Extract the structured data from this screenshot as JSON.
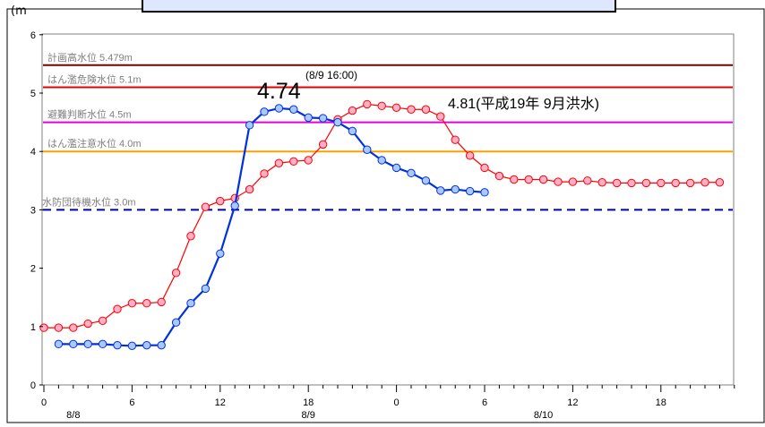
{
  "chart_data": {
    "type": "line",
    "title": "",
    "ylabel": "(m",
    "ylim": [
      0,
      6
    ],
    "y_ticks": [
      "0",
      "1",
      "2",
      "3",
      "4",
      "5",
      "6"
    ],
    "x_ticks": [
      {
        "h": 0,
        "label": "0"
      },
      {
        "h": 6,
        "label": "6"
      },
      {
        "h": 12,
        "label": "12"
      },
      {
        "h": 18,
        "label": "18"
      },
      {
        "h": 24,
        "label": "0"
      },
      {
        "h": 30,
        "label": "6"
      },
      {
        "h": 36,
        "label": "12"
      },
      {
        "h": 42,
        "label": "18"
      }
    ],
    "date_labels": [
      {
        "h": 2,
        "label": "8/8"
      },
      {
        "h": 18,
        "label": "8/9"
      },
      {
        "h": 34,
        "label": "8/10"
      }
    ],
    "reference_lines": [
      {
        "label": "計画高水位 5.479m",
        "value": 5.479,
        "color": "#7a0000",
        "dashed": false
      },
      {
        "label": "はん濫危険水位 5.1m",
        "value": 5.1,
        "color": "#e00000",
        "dashed": false
      },
      {
        "label": "避難判断水位 4.5m",
        "value": 4.5,
        "color": "#e000e0",
        "dashed": false
      },
      {
        "label": "はん濫注意水位 4.0m",
        "value": 4.0,
        "color": "#ffa000",
        "dashed": false
      },
      {
        "label": "水防団待機水位 3.0m",
        "value": 3.0,
        "color": "#0000b0",
        "dashed": true
      }
    ],
    "series": [
      {
        "name": "",
        "color": "#ff0000",
        "fill": "#ffb0c8",
        "x": [
          0,
          1,
          2,
          3,
          4,
          5,
          6,
          7,
          8,
          9,
          10,
          11,
          12,
          13,
          14,
          15,
          16,
          17,
          18,
          19,
          20,
          21,
          22,
          23,
          24,
          25,
          26,
          27,
          28,
          29,
          30,
          31,
          32,
          33,
          34,
          35,
          36,
          37,
          38,
          39,
          40,
          41,
          42,
          43,
          44,
          45,
          46
        ],
        "values": [
          0.98,
          0.98,
          0.98,
          1.05,
          1.1,
          1.3,
          1.4,
          1.4,
          1.42,
          1.92,
          2.55,
          3.05,
          3.15,
          3.2,
          3.35,
          3.62,
          3.8,
          3.83,
          3.85,
          4.12,
          4.55,
          4.7,
          4.81,
          4.78,
          4.75,
          4.72,
          4.72,
          4.6,
          4.2,
          3.93,
          3.72,
          3.58,
          3.52,
          3.52,
          3.52,
          3.48,
          3.48,
          3.5,
          3.47,
          3.46,
          3.46,
          3.46,
          3.46,
          3.46,
          3.46,
          3.47,
          3.47
        ]
      },
      {
        "name": "",
        "color": "#0030e0",
        "fill": "#a8c8ff",
        "x": [
          1,
          2,
          3,
          4,
          5,
          6,
          7,
          8,
          9,
          10,
          11,
          12,
          13,
          14,
          15,
          16,
          17,
          18,
          19,
          20,
          21,
          22,
          23,
          24,
          25,
          26,
          27,
          28,
          29,
          30
        ],
        "values": [
          0.7,
          0.7,
          0.7,
          0.7,
          0.68,
          0.67,
          0.68,
          0.68,
          1.07,
          1.4,
          1.65,
          2.25,
          3.07,
          4.45,
          4.68,
          4.74,
          4.72,
          4.58,
          4.57,
          4.5,
          4.35,
          4.03,
          3.85,
          3.72,
          3.63,
          3.5,
          3.33,
          3.35,
          3.32,
          3.3
        ]
      }
    ],
    "annotations": [
      {
        "text": "4.74",
        "sub": "(8/9 16:00)"
      },
      {
        "text": "4.81(平成19年 9月洪水)"
      }
    ],
    "grid": false
  }
}
